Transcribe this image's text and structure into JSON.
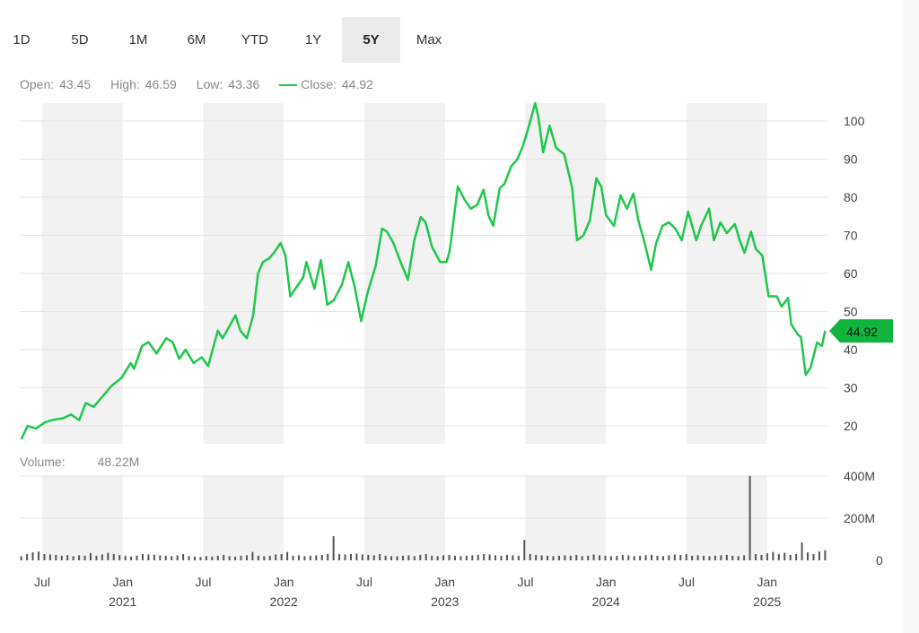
{
  "tabs": [
    "1D",
    "5D",
    "1M",
    "6M",
    "YTD",
    "1Y",
    "5Y",
    "Max"
  ],
  "active_tab": "5Y",
  "ohlc": {
    "open_label": "Open:",
    "open": "43.45",
    "high_label": "High:",
    "high": "46.59",
    "low_label": "Low:",
    "low": "43.36",
    "close_label": "Close:",
    "close": "44.92"
  },
  "volume": {
    "label": "Volume:",
    "value": "48.22M"
  },
  "colors": {
    "line": "#1ec84a",
    "badge": "#0fb53c",
    "band": "#f2f2f2",
    "bar": "#555555"
  },
  "chart_data": {
    "type": "line",
    "title": "",
    "ylim": [
      15,
      105
    ],
    "y_ticks": [
      "100",
      "90",
      "80",
      "70",
      "60",
      "50",
      "40",
      "30",
      "20"
    ],
    "y_tick_values": [
      100,
      90,
      80,
      70,
      60,
      50,
      40,
      30,
      20
    ],
    "last_price_label": "44.92",
    "last_price": 44.92,
    "x_ticks": [
      {
        "v": 2020.5,
        "label": "Jul",
        "year": ""
      },
      {
        "v": 2021.0,
        "label": "Jan",
        "year": "2021"
      },
      {
        "v": 2021.5,
        "label": "Jul",
        "year": ""
      },
      {
        "v": 2022.0,
        "label": "Jan",
        "year": "2022"
      },
      {
        "v": 2022.5,
        "label": "Jul",
        "year": ""
      },
      {
        "v": 2023.0,
        "label": "Jan",
        "year": "2023"
      },
      {
        "v": 2023.5,
        "label": "Jul",
        "year": ""
      },
      {
        "v": 2024.0,
        "label": "Jan",
        "year": "2024"
      },
      {
        "v": 2024.5,
        "label": "Jul",
        "year": ""
      },
      {
        "v": 2025.0,
        "label": "Jan",
        "year": "2025"
      }
    ],
    "xlim": [
      2020.37,
      2025.36
    ],
    "series": [
      {
        "name": "Close",
        "points": [
          [
            2020.37,
            16.5
          ],
          [
            2020.41,
            20
          ],
          [
            2020.46,
            19.3
          ],
          [
            2020.52,
            21
          ],
          [
            2020.57,
            21.6
          ],
          [
            2020.63,
            22
          ],
          [
            2020.68,
            23
          ],
          [
            2020.73,
            21.5
          ],
          [
            2020.77,
            26
          ],
          [
            2020.82,
            25
          ],
          [
            2020.88,
            28
          ],
          [
            2020.93,
            30.5
          ],
          [
            2020.99,
            32.5
          ],
          [
            2021.05,
            36.5
          ],
          [
            2021.07,
            35
          ],
          [
            2021.12,
            41
          ],
          [
            2021.16,
            42
          ],
          [
            2021.21,
            39
          ],
          [
            2021.27,
            43
          ],
          [
            2021.31,
            42
          ],
          [
            2021.35,
            37.6
          ],
          [
            2021.39,
            40
          ],
          [
            2021.44,
            36.5
          ],
          [
            2021.49,
            38
          ],
          [
            2021.53,
            35.7
          ],
          [
            2021.59,
            45
          ],
          [
            2021.62,
            43
          ],
          [
            2021.66,
            46
          ],
          [
            2021.7,
            49
          ],
          [
            2021.73,
            45
          ],
          [
            2021.77,
            43
          ],
          [
            2021.81,
            49
          ],
          [
            2021.84,
            60
          ],
          [
            2021.87,
            63
          ],
          [
            2021.91,
            64
          ],
          [
            2021.94,
            65.5
          ],
          [
            2021.98,
            68
          ],
          [
            2022.01,
            64.7
          ],
          [
            2022.04,
            54
          ],
          [
            2022.08,
            56.5
          ],
          [
            2022.12,
            59
          ],
          [
            2022.14,
            63
          ],
          [
            2022.19,
            56
          ],
          [
            2022.23,
            63.5
          ],
          [
            2022.27,
            51.8
          ],
          [
            2022.31,
            53
          ],
          [
            2022.36,
            57
          ],
          [
            2022.4,
            63
          ],
          [
            2022.44,
            56.5
          ],
          [
            2022.48,
            47.5
          ],
          [
            2022.52,
            55
          ],
          [
            2022.57,
            62
          ],
          [
            2022.61,
            71.8
          ],
          [
            2022.64,
            71
          ],
          [
            2022.68,
            68
          ],
          [
            2022.72,
            63.5
          ],
          [
            2022.77,
            58.3
          ],
          [
            2022.81,
            68.7
          ],
          [
            2022.85,
            74.8
          ],
          [
            2022.88,
            73.4
          ],
          [
            2022.92,
            67
          ],
          [
            2022.97,
            63
          ],
          [
            2023.01,
            63
          ],
          [
            2023.03,
            66
          ],
          [
            2023.08,
            82.8
          ],
          [
            2023.12,
            79.5
          ],
          [
            2023.16,
            77
          ],
          [
            2023.2,
            78
          ],
          [
            2023.24,
            82
          ],
          [
            2023.27,
            75.3
          ],
          [
            2023.3,
            72.5
          ],
          [
            2023.34,
            82.4
          ],
          [
            2023.37,
            83.5
          ],
          [
            2023.41,
            88
          ],
          [
            2023.45,
            90
          ],
          [
            2023.48,
            93
          ],
          [
            2023.51,
            97
          ],
          [
            2023.56,
            104.7
          ],
          [
            2023.58,
            101
          ],
          [
            2023.61,
            91.8
          ],
          [
            2023.65,
            98.8
          ],
          [
            2023.69,
            93
          ],
          [
            2023.74,
            91.3
          ],
          [
            2023.79,
            82.4
          ],
          [
            2023.82,
            68.7
          ],
          [
            2023.86,
            70
          ],
          [
            2023.9,
            74
          ],
          [
            2023.94,
            85
          ],
          [
            2023.97,
            82.8
          ],
          [
            2024.0,
            75.3
          ],
          [
            2024.05,
            72.5
          ],
          [
            2024.09,
            80.5
          ],
          [
            2024.13,
            77
          ],
          [
            2024.17,
            81
          ],
          [
            2024.2,
            74
          ],
          [
            2024.24,
            68
          ],
          [
            2024.28,
            61
          ],
          [
            2024.31,
            67.8
          ],
          [
            2024.35,
            72.5
          ],
          [
            2024.39,
            73.4
          ],
          [
            2024.43,
            71.8
          ],
          [
            2024.47,
            68.7
          ],
          [
            2024.51,
            76.2
          ],
          [
            2024.56,
            68.7
          ],
          [
            2024.59,
            72.5
          ],
          [
            2024.64,
            77
          ],
          [
            2024.67,
            68.7
          ],
          [
            2024.71,
            73.4
          ],
          [
            2024.75,
            70.6
          ],
          [
            2024.8,
            73
          ],
          [
            2024.83,
            68.7
          ],
          [
            2024.86,
            65.4
          ],
          [
            2024.9,
            71
          ],
          [
            2024.93,
            66.4
          ],
          [
            2024.97,
            64.7
          ],
          [
            2025.01,
            54
          ],
          [
            2025.06,
            54
          ],
          [
            2025.09,
            51.3
          ],
          [
            2025.13,
            53.6
          ],
          [
            2025.15,
            46.6
          ],
          [
            2025.19,
            44
          ],
          [
            2025.21,
            43.3
          ],
          [
            2025.24,
            33.4
          ],
          [
            2025.27,
            35.3
          ],
          [
            2025.31,
            41.9
          ],
          [
            2025.34,
            41
          ],
          [
            2025.36,
            44.92
          ]
        ]
      }
    ],
    "volume_chart": {
      "ylim": [
        0,
        400
      ],
      "y_ticks": [
        "400M",
        "200M",
        "0"
      ],
      "y_tick_values": [
        400,
        200,
        0
      ],
      "unit": "M",
      "values": [
        20,
        30,
        38,
        42,
        30,
        28,
        26,
        22,
        25,
        20,
        24,
        22,
        35,
        22,
        28,
        36,
        30,
        25,
        22,
        18,
        22,
        30,
        28,
        26,
        24,
        22,
        20,
        24,
        30,
        20,
        18,
        16,
        20,
        18,
        22,
        26,
        20,
        18,
        22,
        24,
        40,
        22,
        20,
        22,
        28,
        30,
        40,
        22,
        24,
        20,
        22,
        24,
        26,
        30,
        115,
        30,
        28,
        30,
        32,
        28,
        26,
        24,
        30,
        22,
        20,
        20,
        22,
        24,
        20,
        26,
        30,
        22,
        20,
        24,
        26,
        22,
        20,
        22,
        24,
        26,
        30,
        28,
        24,
        22,
        26,
        24,
        22,
        97,
        30,
        26,
        24,
        22,
        20,
        22,
        24,
        22,
        26,
        20,
        22,
        28,
        24,
        22,
        20,
        22,
        26,
        24,
        20,
        22,
        24,
        26,
        22,
        20,
        24,
        28,
        26,
        30,
        22,
        24,
        22,
        20,
        22,
        24,
        26,
        22,
        20,
        24,
        400,
        30,
        26,
        34,
        40,
        30,
        36,
        26,
        30,
        85,
        38,
        30,
        42,
        48
      ]
    }
  }
}
